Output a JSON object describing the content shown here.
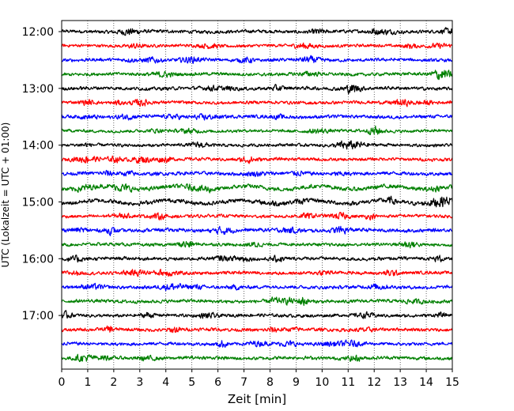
{
  "chart_data": {
    "type": "line",
    "title": "",
    "xlabel": "Zeit  [min]",
    "ylabel": "UTC (Lokalzeit = UTC + 01:00)",
    "xlim": [
      0,
      15
    ],
    "x_ticks": [
      "0",
      "1",
      "2",
      "3",
      "4",
      "5",
      "6",
      "7",
      "8",
      "9",
      "10",
      "11",
      "12",
      "13",
      "14",
      "15"
    ],
    "y_ticks": [
      "12:00",
      "13:00",
      "14:00",
      "15:00",
      "16:00",
      "17:00"
    ],
    "grid": "vertical dotted",
    "trace_interval_min": 15,
    "trace_colors": [
      "#000000",
      "#ff0000",
      "#0000ff",
      "#008000"
    ],
    "series": [
      {
        "start": "12:00",
        "color": "#000000",
        "amplitude": 0.18
      },
      {
        "start": "12:15",
        "color": "#ff0000",
        "amplitude": 0.16
      },
      {
        "start": "12:30",
        "color": "#0000ff",
        "amplitude": 0.17
      },
      {
        "start": "12:45",
        "color": "#008000",
        "amplitude": 0.17
      },
      {
        "start": "13:00",
        "color": "#000000",
        "amplitude": 0.18
      },
      {
        "start": "13:15",
        "color": "#ff0000",
        "amplitude": 0.17
      },
      {
        "start": "13:30",
        "color": "#0000ff",
        "amplitude": 0.18
      },
      {
        "start": "13:45",
        "color": "#008000",
        "amplitude": 0.16
      },
      {
        "start": "14:00",
        "color": "#000000",
        "amplitude": 0.16
      },
      {
        "start": "14:15",
        "color": "#ff0000",
        "amplitude": 0.17
      },
      {
        "start": "14:30",
        "color": "#0000ff",
        "amplitude": 0.19
      },
      {
        "start": "14:45",
        "color": "#008000",
        "amplitude": 0.22
      },
      {
        "start": "15:00",
        "color": "#000000",
        "amplitude": 0.22
      },
      {
        "start": "15:15",
        "color": "#ff0000",
        "amplitude": 0.17
      },
      {
        "start": "15:30",
        "color": "#0000ff",
        "amplitude": 0.19
      },
      {
        "start": "15:45",
        "color": "#008000",
        "amplitude": 0.17
      },
      {
        "start": "16:00",
        "color": "#000000",
        "amplitude": 0.18
      },
      {
        "start": "16:15",
        "color": "#ff0000",
        "amplitude": 0.17
      },
      {
        "start": "16:30",
        "color": "#0000ff",
        "amplitude": 0.18
      },
      {
        "start": "16:45",
        "color": "#008000",
        "amplitude": 0.18
      },
      {
        "start": "17:00",
        "color": "#000000",
        "amplitude": 0.17
      },
      {
        "start": "17:15",
        "color": "#ff0000",
        "amplitude": 0.18
      },
      {
        "start": "17:30",
        "color": "#0000ff",
        "amplitude": 0.17
      },
      {
        "start": "17:45",
        "color": "#008000",
        "amplitude": 0.18
      }
    ]
  }
}
